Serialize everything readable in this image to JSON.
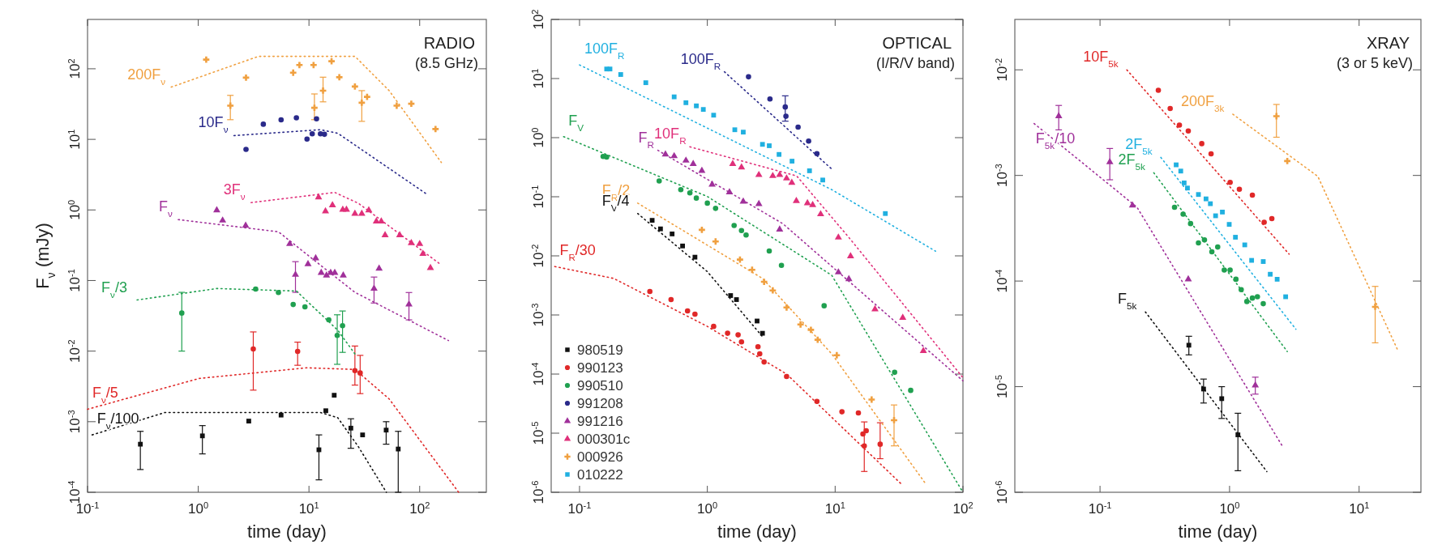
{
  "chart_data": [
    {
      "type": "scatter",
      "title": "RADIO",
      "subtitle": "(8.5 GHz)",
      "xlabel": "time (day)",
      "ylabel": "F$_{ν}$ (mJy)",
      "log": "xy",
      "legend": false,
      "grid": false,
      "xlim": [
        0.1,
        400
      ],
      "ylim": [
        0.0001,
        500
      ],
      "xticks": [
        {
          "value": 0.1,
          "label": "10$^{-1}$"
        },
        {
          "value": 1,
          "label": "10$^{0}$"
        },
        {
          "value": 10,
          "label": "10$^{1}$"
        },
        {
          "value": 100,
          "label": "10$^{2}$"
        }
      ],
      "yticks": [
        {
          "value": 0.0001,
          "label": "10$^{-4}$"
        },
        {
          "value": 0.001,
          "label": "10$^{-3}$"
        },
        {
          "value": 0.01,
          "label": "10$^{-2}$"
        },
        {
          "value": 0.1,
          "label": "10$^{-1}$"
        },
        {
          "value": 1,
          "label": "10$^{0}$"
        },
        {
          "value": 10,
          "label": "10$^{1}$"
        },
        {
          "value": 100,
          "label": "10$^{2}$"
        }
      ],
      "series": [
        {
          "type": "scatter",
          "marker": "cross",
          "color": "#f0a040",
          "x": [
            1.18,
            1.95,
            2.7,
            7.2,
            8.2,
            11,
            11.2,
            13.4,
            16,
            18.8,
            26,
            30,
            33.5,
            62,
            84,
            139
          ],
          "values": [
            135,
            30,
            75,
            88,
            113,
            113,
            28,
            49,
            128,
            76,
            56,
            33,
            40,
            30,
            32,
            14
          ],
          "errors": [
            null,
            [
              19,
              42
            ],
            null,
            null,
            null,
            null,
            [
              19,
              44
            ],
            [
              34,
              76
            ],
            null,
            null,
            null,
            [
              18,
              49
            ],
            null,
            null,
            null,
            null
          ]
        },
        {
          "type": "scatter",
          "marker": "circle",
          "color": "#2a2a8a",
          "x": [
            2.7,
            3.87,
            5.6,
            7.7,
            9.6,
            10.7,
            11.7,
            12.7,
            13.8
          ],
          "values": [
            7.2,
            16.4,
            18.9,
            20.2,
            10.1,
            12,
            19.5,
            12,
            11.8
          ]
        },
        {
          "type": "scatter",
          "marker": "triangle",
          "color": "#e0307a",
          "x": [
            12.2,
            14.1,
            16.3,
            20.2,
            21.8,
            26,
            30,
            34.7,
            40.6,
            45,
            48.7,
            66,
            84,
            100,
            107,
            125
          ],
          "values": [
            1.51,
            0.96,
            1.17,
            1.01,
            1.01,
            0.885,
            0.885,
            0.99,
            0.69,
            0.69,
            0.44,
            0.44,
            0.34,
            0.33,
            0.24,
            0.151
          ]
        },
        {
          "type": "scatter",
          "marker": "triangle",
          "color": "#a0309a",
          "x": [
            1.47,
            1.66,
            2.68,
            6.7,
            7.55,
            9.8,
            11.5,
            12.9,
            14.4,
            15.7,
            17.1,
            20.4,
            38.7,
            43,
            80
          ],
          "values": [
            0.99,
            0.71,
            0.6,
            0.33,
            0.121,
            0.171,
            0.207,
            0.129,
            0.118,
            0.129,
            0.129,
            0.118,
            0.077,
            0.148,
            0.046
          ],
          "errors": [
            null,
            null,
            null,
            null,
            [
              0.068,
              0.185
            ],
            null,
            null,
            null,
            null,
            null,
            null,
            null,
            [
              0.048,
              0.112
            ],
            null,
            [
              0.0277,
              0.0676
            ]
          ]
        },
        {
          "type": "scatter",
          "marker": "circle",
          "color": "#20a050",
          "x": [
            0.71,
            3.3,
            5.3,
            7.2,
            9.2,
            15.1,
            18,
            20.1
          ],
          "values": [
            0.0346,
            0.0757,
            0.0676,
            0.0457,
            0.0423,
            0.0277,
            0.0167,
            0.0229
          ],
          "errors": [
            [
              0.01,
              0.068
            ],
            null,
            null,
            null,
            null,
            null,
            [
              0.0065,
              0.0327
            ],
            [
              0.0096,
              0.037
            ]
          ]
        },
        {
          "type": "scatter",
          "marker": "circle",
          "color": "#e02828",
          "x": [
            3.14,
            7.9,
            26,
            29
          ],
          "values": [
            0.0107,
            0.0099,
            0.0053,
            0.0049
          ],
          "errors": [
            [
              0.0028,
              0.0187
            ],
            [
              0.0063,
              0.0134
            ],
            [
              0.0033,
              0.0118
            ],
            [
              0.0025,
              0.0087
            ]
          ]
        },
        {
          "type": "scatter",
          "marker": "square",
          "color": "#111111",
          "x": [
            0.3,
            1.09,
            2.86,
            5.6,
            12.3,
            14.2,
            16.9,
            23.9,
            30.5,
            49.8,
            64
          ],
          "values": [
            0.00048,
            0.00063,
            0.00102,
            0.00124,
            0.0004,
            0.00143,
            0.00237,
            0.00081,
            0.00065,
            0.00076,
            0.00041
          ],
          "errors": [
            [
              0.00021,
              0.00073
            ],
            [
              0.00035,
              0.00088
            ],
            null,
            null,
            [
              0.00015,
              0.00065
            ],
            null,
            null,
            [
              0.00042,
              0.0011
            ],
            null,
            [
              0.00048,
              0.001
            ],
            [
              0.0001,
              0.00073
            ]
          ]
        },
        {
          "type": "line",
          "name": "200F$_{ν}$",
          "line_style": "dotted",
          "color": "#f0a040",
          "x": [
            0.57,
            3.5,
            26,
            53,
            157
          ],
          "values": [
            55,
            150,
            150,
            49,
            4.7
          ]
        },
        {
          "type": "line",
          "name": "10F$_{ν}$",
          "line_style": "dotted",
          "color": "#2a2a8a",
          "x": [
            2.1,
            12.7,
            18.2,
            118
          ],
          "values": [
            11.3,
            13.7,
            12.2,
            1.64
          ]
        },
        {
          "type": "line",
          "name": "3F$_{ν}$",
          "line_style": "dotted",
          "color": "#e0307a",
          "x": [
            3.0,
            17.1,
            28,
            157
          ],
          "values": [
            1.27,
            1.77,
            1.24,
            0.166
          ]
        },
        {
          "type": "line",
          "name": "F$_{ν}$",
          "line_style": "dotted",
          "color": "#a0309a",
          "x": [
            0.66,
            5.3,
            12.7,
            26,
            182
          ],
          "values": [
            0.73,
            0.49,
            0.165,
            0.068,
            0.0141
          ]
        },
        {
          "type": "line",
          "name": "F$_{ν}$/3",
          "line_style": "dotted",
          "color": "#20a050",
          "x": [
            0.28,
            1.47,
            7.7,
            18.2,
            26
          ],
          "values": [
            0.053,
            0.077,
            0.071,
            0.0198,
            0.0091
          ]
        },
        {
          "type": "line",
          "name": "F$_{ν}$/5",
          "line_style": "dotted",
          "color": "#e02828",
          "x": [
            0.1,
            1.02,
            9.5,
            26,
            53,
            225
          ],
          "values": [
            0.0015,
            0.0041,
            0.0058,
            0.0055,
            0.0021,
            0.0001
          ]
        },
        {
          "type": "line",
          "name": "F$_{ν}$/100",
          "line_style": "dotted",
          "color": "#111111",
          "x": [
            0.11,
            0.5,
            12.7,
            18.2,
            28,
            50
          ],
          "values": [
            0.00065,
            0.00135,
            0.00135,
            0.00114,
            0.00044,
            0.0001
          ]
        }
      ]
    },
    {
      "type": "scatter",
      "title": "OPTICAL",
      "subtitle": "(I/R/V band)",
      "xlabel": "time (day)",
      "log": "xy",
      "legend": "bottom left",
      "grid": false,
      "xlim": [
        0.06,
        100
      ],
      "ylim": [
        1e-06,
        100
      ],
      "xticks": [
        {
          "value": 0.1,
          "label": "10$^{-1}$"
        },
        {
          "value": 1,
          "label": "10$^{0}$"
        },
        {
          "value": 10,
          "label": "10$^{1}$"
        },
        {
          "value": 100,
          "label": "10$^{2}$"
        }
      ],
      "yticks": [
        {
          "value": 1e-06,
          "label": "10$^{-6}$"
        },
        {
          "value": 1e-05,
          "label": "10$^{-5}$"
        },
        {
          "value": 0.0001,
          "label": "10$^{-4}$"
        },
        {
          "value": 0.001,
          "label": "10$^{-3}$"
        },
        {
          "value": 0.01,
          "label": "10$^{-2}$"
        },
        {
          "value": 0.1,
          "label": "10$^{-1}$"
        },
        {
          "value": 1,
          "label": "10$^{0}$"
        },
        {
          "value": 10,
          "label": "10$^{1}$"
        },
        {
          "value": 100,
          "label": "10$^{2}$"
        }
      ],
      "series": [
        {
          "type": "scatter",
          "name": "980519",
          "marker": "square",
          "color": "#111111",
          "x": [
            0.37,
            0.43,
            0.53,
            0.64,
            0.8,
            1.52,
            1.69,
            2.45,
            2.7
          ],
          "values": [
            0.0399,
            0.0286,
            0.0235,
            0.0147,
            0.0095,
            0.00213,
            0.00182,
            0.00079,
            0.00049
          ]
        },
        {
          "type": "scatter",
          "name": "990123",
          "marker": "circle",
          "color": "#e02828",
          "x": [
            0.355,
            0.52,
            0.7,
            0.8,
            1.12,
            1.44,
            1.74,
            1.85,
            2.49,
            2.57,
            2.78,
            4.17,
            7.2,
            11.3,
            15.2,
            16.5,
            17.5,
            16.9,
            22.5
          ],
          "values": [
            0.0025,
            0.00182,
            0.00117,
            0.00103,
            0.00064,
            0.00049,
            0.00046,
            0.00035,
            0.00029,
            0.00022,
            0.00016,
            9.1e-05,
            3.45e-05,
            2.3e-05,
            2.2e-05,
            9.7e-06,
            1.1e-05,
            6.1e-06,
            6.5e-06
          ],
          "errors": [
            null,
            null,
            null,
            null,
            null,
            null,
            null,
            null,
            null,
            null,
            null,
            null,
            null,
            null,
            null,
            null,
            null,
            [
              2.25e-06,
              1.55e-05
            ],
            [
              3.7e-06,
              1.5e-05
            ]
          ]
        },
        {
          "type": "scatter",
          "name": "990510",
          "marker": "circle",
          "color": "#20a050",
          "x": [
            0.153,
            0.163,
            0.42,
            0.62,
            0.73,
            0.82,
            1.0,
            1.16,
            1.62,
            1.85,
            2.01,
            3.05,
            3.8,
            8.2,
            29.2,
            39
          ],
          "values": [
            0.48,
            0.469,
            0.185,
            0.132,
            0.116,
            0.095,
            0.078,
            0.0636,
            0.0327,
            0.0268,
            0.0225,
            0.0121,
            0.0069,
            0.00143,
            0.000107,
            5.3e-05
          ]
        },
        {
          "type": "scatter",
          "name": "991208",
          "marker": "circle",
          "color": "#2a2a8a",
          "x": [
            2.1,
            3.09,
            4.07,
            4.12,
            5.13,
            6.2,
            7.2
          ],
          "values": [
            10.7,
            4.5,
            3.3,
            2.3,
            1.51,
            0.875,
            0.535
          ],
          "errors": [
            null,
            null,
            [
              1.9,
              5.1
            ],
            null,
            null,
            null,
            null
          ]
        },
        {
          "type": "scatter",
          "name": "991216",
          "marker": "triangle",
          "color": "#a0309a",
          "x": [
            0.47,
            0.55,
            0.68,
            0.775,
            0.906,
            1.09,
            1.49,
            1.91,
            2.53,
            3.68,
            10.6,
            12.8
          ],
          "values": [
            0.52,
            0.488,
            0.41,
            0.359,
            0.275,
            0.161,
            0.119,
            0.083,
            0.0756,
            0.0279,
            0.00528,
            0.00405
          ]
        },
        {
          "type": "scatter",
          "name": "000301c",
          "marker": "triangle",
          "color": "#e0307a",
          "x": [
            1.58,
            1.85,
            2.53,
            3.25,
            3.68,
            4.17,
            4.58,
            4.97,
            6.07,
            6.67,
            7.7,
            10.6,
            13.2,
            20.5,
            33.8,
            49
          ],
          "values": [
            0.359,
            0.314,
            0.234,
            0.225,
            0.234,
            0.205,
            0.173,
            0.085,
            0.078,
            0.0727,
            0.0507,
            0.0205,
            0.00986,
            0.00125,
            0.0009,
            0.000247
          ]
        },
        {
          "type": "scatter",
          "name": "000926",
          "marker": "cross",
          "color": "#f0a040",
          "x": [
            0.906,
            1.16,
            1.8,
            2.24,
            2.78,
            3.25,
            4.17,
            5.36,
            6.46,
            7.3,
            10.3,
            19.3,
            28.9
          ],
          "values": [
            0.0275,
            0.0175,
            0.00863,
            0.0058,
            0.00364,
            0.0026,
            0.00134,
            0.00069,
            0.00056,
            0.00038,
            0.000208,
            3.7e-05,
            1.66e-05
          ],
          "errors": [
            null,
            null,
            null,
            null,
            null,
            null,
            null,
            null,
            null,
            null,
            null,
            null,
            [
              6.1e-06,
              3e-05
            ]
          ]
        },
        {
          "type": "scatter",
          "name": "010222",
          "marker": "square",
          "color": "#20b0e0",
          "x": [
            0.163,
            0.173,
            0.21,
            0.33,
            0.55,
            0.68,
            0.82,
            0.93,
            1.12,
            1.64,
            1.91,
            2.7,
            3.05,
            3.64,
            4.6,
            6.3,
            8.0,
            24.7
          ],
          "values": [
            14.5,
            14.5,
            11.7,
            8.5,
            4.9,
            3.9,
            3.45,
            3.0,
            2.4,
            1.36,
            1.24,
            0.77,
            0.73,
            0.52,
            0.4,
            0.275,
            0.192,
            0.052
          ]
        },
        {
          "type": "line",
          "name": "100F$_{R}$",
          "line_style": "dotted",
          "color": "#20b0e0",
          "x": [
            0.1,
            1,
            9.4,
            61
          ],
          "values": [
            17,
            1.45,
            0.132,
            0.012
          ]
        },
        {
          "type": "line",
          "name": "100F$_{R}$",
          "line_style": "dotted",
          "color": "#2a2a8a",
          "x": [
            1.36,
            9.4
          ],
          "values": [
            13,
            0.294
          ]
        },
        {
          "type": "line",
          "name": "10F$_{R}$",
          "line_style": "dotted",
          "color": "#e0307a",
          "x": [
            0.73,
            5.0,
            12.8,
            100
          ],
          "values": [
            0.7,
            0.225,
            0.0205,
            8.7e-05
          ]
        },
        {
          "type": "line",
          "name": "F$_{R}$",
          "line_style": "dotted",
          "color": "#a0309a",
          "x": [
            0.41,
            3.9,
            100
          ],
          "values": [
            0.61,
            0.035,
            7.7e-05
          ]
        },
        {
          "type": "line",
          "name": "F$_{V}$",
          "line_style": "dotted",
          "color": "#20a050",
          "x": [
            0.075,
            1,
            9.4,
            100
          ],
          "values": [
            1.04,
            0.101,
            0.0047,
            1e-06
          ]
        },
        {
          "type": "line",
          "name": "F$_{R}$/2",
          "line_style": "dotted",
          "color": "#f0a040",
          "x": [
            0.285,
            2.7,
            9.4,
            51
          ],
          "values": [
            0.078,
            0.00415,
            0.00022,
            1.4e-06
          ]
        },
        {
          "type": "line",
          "name": "F$_{V}$/4",
          "line_style": "dotted",
          "color": "#111111",
          "x": [
            0.285,
            1,
            2.7
          ],
          "values": [
            0.052,
            0.0054,
            0.00043
          ]
        },
        {
          "type": "line",
          "name": "F$_{R}$/30",
          "line_style": "dotted",
          "color": "#e02828",
          "x": [
            0.064,
            0.185,
            1,
            4.17,
            32.7
          ],
          "values": [
            0.0066,
            0.00415,
            0.00064,
            0.0001,
            1.4e-06
          ]
        }
      ]
    },
    {
      "type": "scatter",
      "title": "XRAY",
      "subtitle": "(3 or 5 keV)",
      "xlabel": "time (day)",
      "log": "xy",
      "legend": false,
      "grid": false,
      "xlim": [
        0.022,
        30
      ],
      "ylim": [
        1e-06,
        0.03
      ],
      "xticks": [
        {
          "value": 0.1,
          "label": "10$^{-1}$"
        },
        {
          "value": 1,
          "label": "10$^{0}$"
        },
        {
          "value": 10,
          "label": "10$^{1}$"
        }
      ],
      "yticks": [
        {
          "value": 1e-06,
          "label": "10$^{-6}$"
        },
        {
          "value": 1e-05,
          "label": "10$^{-5}$"
        },
        {
          "value": 0.0001,
          "label": "10$^{-4}$"
        },
        {
          "value": 0.001,
          "label": "10$^{-3}$"
        },
        {
          "value": 0.01,
          "label": "10$^{-2}$"
        }
      ],
      "series": [
        {
          "type": "scatter",
          "marker": "circle",
          "color": "#e02828",
          "x": [
            0.282,
            0.348,
            0.41,
            0.48,
            0.61,
            0.72,
            1.01,
            1.19,
            1.5,
            1.85,
            2.12
          ],
          "values": [
            0.0064,
            0.0043,
            0.003,
            0.00264,
            0.002,
            0.0016,
            0.00086,
            0.00074,
            0.00065,
            0.00036,
            0.00039
          ]
        },
        {
          "type": "scatter",
          "marker": "square",
          "color": "#20b0e0",
          "x": [
            0.387,
            0.42,
            0.446,
            0.473,
            0.575,
            0.658,
            0.711,
            0.78,
            0.88,
            0.994,
            1.11,
            1.31,
            1.48,
            1.82,
            2.06,
            2.33,
            2.71
          ],
          "values": [
            0.00126,
            0.0011,
            0.00085,
            0.00076,
            0.00066,
            0.0006,
            0.00054,
            0.000415,
            0.00045,
            0.000344,
            0.00026,
            0.00022,
            0.000157,
            0.000153,
            0.000116,
            0.000104,
            7.1e-05
          ]
        },
        {
          "type": "scatter",
          "marker": "circle",
          "color": "#20a050",
          "x": [
            0.376,
            0.438,
            0.5,
            0.575,
            0.64,
            0.73,
            0.81,
            0.91,
            1.01,
            1.12,
            1.23,
            1.36,
            1.5,
            1.64,
            1.82
          ],
          "values": [
            0.0005,
            0.00043,
            0.00035,
            0.00023,
            0.000245,
            0.000189,
            0.00021,
            0.000127,
            0.000127,
            0.000104,
            8.3e-05,
            6.4e-05,
            6.9e-05,
            7.1e-05,
            6.1e-05
          ]
        },
        {
          "type": "scatter",
          "marker": "triangle",
          "color": "#a0309a",
          "x": [
            0.048,
            0.119,
            0.178,
            0.48,
            1.58
          ],
          "values": [
            0.00364,
            0.00134,
            0.00052,
            0.000104,
            1.03e-05
          ],
          "errors": [
            [
              0.0027,
              0.0046
            ],
            [
              0.00091,
              0.0018
            ],
            null,
            null,
            [
              8.5e-06,
              1.23e-05
            ]
          ]
        },
        {
          "type": "scatter",
          "marker": "cross",
          "color": "#f0a040",
          "x": [
            2.3,
            2.79,
            13.3
          ],
          "values": [
            0.00364,
            0.00137,
            5.7e-05
          ],
          "errors": [
            [
              0.0023,
              0.0047
            ],
            null,
            [
              2.6e-05,
              8.9e-05
            ]
          ]
        },
        {
          "type": "scatter",
          "marker": "square",
          "color": "#111111",
          "x": [
            0.485,
            0.63,
            0.87,
            1.16
          ],
          "values": [
            2.47e-05,
            9.5e-06,
            7.7e-06,
            3.5e-06
          ],
          "errors": [
            [
              2e-05,
              3e-05
            ],
            [
              7e-06,
              1.18e-05
            ],
            [
              5e-06,
              1e-05
            ],
            [
              1.6e-06,
              5.6e-06
            ]
          ]
        },
        {
          "type": "line",
          "name": "10F$_{5k}$",
          "line_style": "dotted",
          "color": "#e02828",
          "x": [
            0.161,
            2.88
          ],
          "values": [
            0.01,
            0.00018
          ]
        },
        {
          "type": "line",
          "name": "2F$_{5k}$",
          "line_style": "dotted",
          "color": "#20b0e0",
          "x": [
            0.295,
            3.25
          ],
          "values": [
            0.00148,
            3.5e-05
          ]
        },
        {
          "type": "line",
          "name": "2F$_{5k}$",
          "line_style": "dotted",
          "color": "#20a050",
          "x": [
            0.26,
            2.79
          ],
          "values": [
            0.00106,
            2.15e-05
          ]
        },
        {
          "type": "line",
          "name": "F$_{5k}$/10",
          "line_style": "dotted",
          "color": "#a0309a",
          "x": [
            0.031,
            0.193,
            2.55
          ],
          "values": [
            0.0031,
            0.0005,
            2.75e-06
          ]
        },
        {
          "type": "line",
          "name": "200F$_{3k}$",
          "line_style": "dotted",
          "color": "#f0a040",
          "x": [
            1.06,
            4.8,
            20.1
          ],
          "values": [
            0.0038,
            0.00098,
            2.15e-05
          ]
        },
        {
          "type": "line",
          "name": "F$_{5k}$",
          "line_style": "dotted",
          "color": "#111111",
          "x": [
            0.224,
            1.94
          ],
          "values": [
            5.1e-05,
            1.57e-06
          ]
        }
      ]
    }
  ]
}
